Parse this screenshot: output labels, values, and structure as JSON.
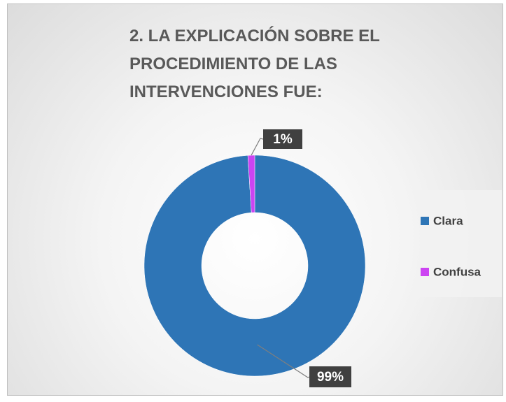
{
  "chart_data": {
    "type": "donut",
    "title": "2. LA EXPLICACIÓN SOBRE EL PROCEDIMIENTO DE LAS INTERVENCIONES FUE:",
    "categories": [
      "Clara",
      "Confusa"
    ],
    "values": [
      99,
      1
    ],
    "value_labels": [
      "99%",
      "1%"
    ],
    "colors": [
      "#2e75b6",
      "#cc44f2"
    ],
    "legend": "right"
  }
}
